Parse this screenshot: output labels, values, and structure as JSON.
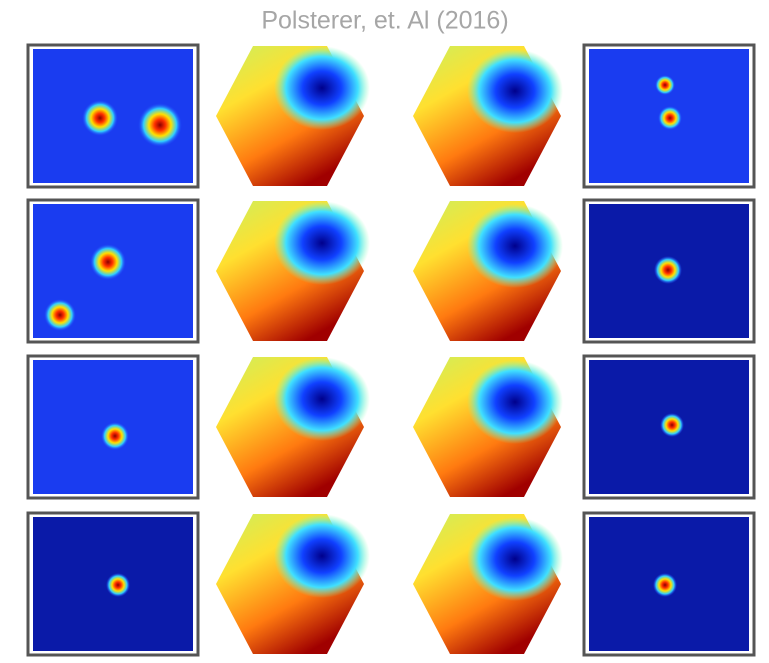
{
  "title": "Polsterer, et. Al (2016)"
}
